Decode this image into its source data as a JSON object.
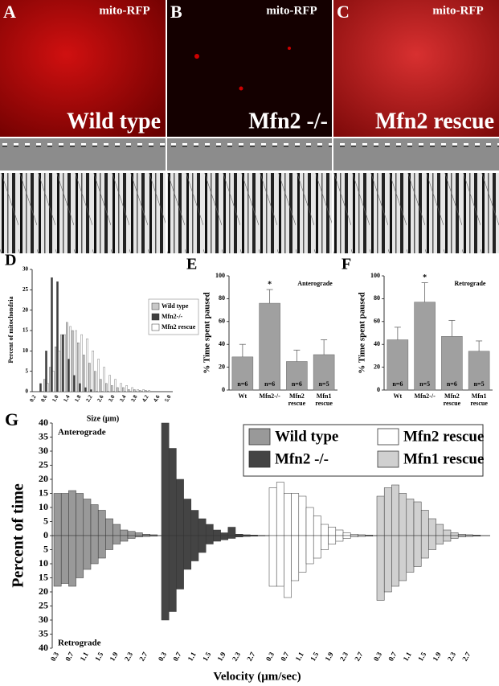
{
  "images": [
    {
      "letter": "A",
      "marker": "mito-RFP",
      "condition": "Wild type"
    },
    {
      "letter": "B",
      "marker": "mito-RFP",
      "condition": "Mfn2 -/-"
    },
    {
      "letter": "C",
      "marker": "mito-RFP",
      "condition": "Mfn2 rescue"
    }
  ],
  "chart_data": [
    {
      "letter": "D",
      "type": "bar",
      "ylabel": "Percent of mitochondria",
      "xlabel": "Size (μm)",
      "categories": [
        "0.2",
        null,
        "0.6",
        null,
        "1.0",
        null,
        "1.4",
        null,
        "1.8",
        null,
        "2.2",
        null,
        "2.6",
        null,
        "3.0",
        null,
        "3.4",
        null,
        "3.8",
        null,
        "4.2",
        null,
        "4.6",
        null,
        "5.0"
      ],
      "series": [
        {
          "name": "Wild type",
          "color": "#c8c8c8",
          "values": [
            0,
            0,
            3,
            6,
            11,
            14,
            17,
            15,
            12,
            9,
            7,
            5,
            3,
            2,
            1.5,
            1,
            1,
            0.5,
            0.5,
            0.3,
            0.3,
            0,
            0,
            0,
            0
          ]
        },
        {
          "name": "Mfn2-/-",
          "color": "#404040",
          "values": [
            0,
            2,
            10,
            28,
            27,
            14,
            8,
            4,
            2,
            1,
            0.5,
            0,
            0,
            0,
            0,
            0,
            0,
            0,
            0,
            0,
            0,
            0,
            0,
            0,
            0
          ]
        },
        {
          "name": "Mfn2 rescue",
          "color": "#ffffff",
          "values": [
            0,
            0,
            2,
            5,
            10,
            14,
            16,
            15,
            14,
            13,
            10,
            8,
            6,
            4,
            3,
            2,
            1.5,
            1,
            0.5,
            0.5,
            0.3,
            0,
            0,
            0,
            0
          ]
        }
      ],
      "ylim": [
        0,
        30
      ],
      "yticks": [
        0,
        5,
        10,
        15,
        20,
        25,
        30
      ]
    },
    {
      "letter": "E",
      "type": "errorbar",
      "title": "Anterograde",
      "ylabel": "% Time spent paused",
      "categories": [
        "Wt",
        "Mfn2-/-",
        "Mfn2 rescue",
        "Mfn1 rescue"
      ],
      "values": [
        29,
        76,
        25,
        31
      ],
      "errors": [
        11,
        12,
        10,
        13
      ],
      "n_labels": [
        "n=6",
        "n=6",
        "n=6",
        "n=5"
      ],
      "annotation": {
        "text": "*",
        "category": "Mfn2-/-"
      },
      "color": "#a0a0a0",
      "ylim": [
        0,
        100
      ],
      "yticks": [
        0,
        20,
        40,
        60,
        80,
        100
      ]
    },
    {
      "letter": "F",
      "type": "errorbar",
      "title": "Retrograde",
      "ylabel": "% Time spent paused",
      "categories": [
        "Wt",
        "Mfn2-/-",
        "Mfn2 rescue",
        "Mfn1 rescue"
      ],
      "values": [
        44,
        77,
        47,
        34
      ],
      "errors": [
        11,
        17,
        14,
        9
      ],
      "n_labels": [
        "n=6",
        "n=5",
        "n=6",
        "n=5"
      ],
      "annotation": {
        "text": "*",
        "category": "Mfn2-/-"
      },
      "color": "#a0a0a0",
      "ylim": [
        0,
        100
      ],
      "yticks": [
        0,
        20,
        40,
        60,
        80,
        100
      ]
    },
    {
      "letter": "G",
      "type": "mirrored",
      "ylabel": "Percent of time",
      "xlabel": "Velocity (μm/sec)",
      "top_label": "Anterograde",
      "bottom_label": "Retrograde",
      "categories": [
        "0.3",
        null,
        "0.7",
        null,
        "1.1",
        null,
        "1.5",
        null,
        "1.9",
        null,
        "2.3",
        null,
        "2.7",
        null
      ],
      "series": [
        {
          "name": "Wild type",
          "color": "#999999",
          "anterograde": [
            15,
            15,
            16,
            15,
            13,
            11,
            9,
            6,
            4,
            2,
            1.5,
            1,
            0.5,
            0.3
          ],
          "retrograde": [
            -18,
            -17,
            -18,
            -15,
            -12,
            -10,
            -8,
            -5,
            -3,
            -2,
            -1,
            -0.5,
            -0.3,
            -0.2
          ]
        },
        {
          "name": "Mfn2 -/-",
          "color": "#444444",
          "anterograde": [
            40,
            31,
            20,
            13,
            9,
            6,
            4,
            2,
            1,
            3,
            0.5,
            0.3,
            0.2,
            0.1
          ],
          "retrograde": [
            -30,
            -27,
            -19,
            -12,
            -9,
            -6,
            -3,
            -2,
            -1.5,
            -1,
            -0.5,
            -0.3,
            -0.2,
            -0.1
          ]
        },
        {
          "name": "Mfn2 rescue",
          "color": "#ffffff",
          "anterograde": [
            17,
            19,
            15,
            15,
            14,
            10,
            7,
            4,
            3,
            2,
            1,
            0.5,
            0.3,
            0.2
          ],
          "retrograde": [
            -18,
            -18,
            -22,
            -16,
            -13,
            -10,
            -8,
            -5,
            -3,
            -2,
            -1,
            -0.5,
            -0.3,
            -0.2
          ]
        },
        {
          "name": "Mfn1 rescue",
          "color": "#d0d0d0",
          "anterograde": [
            14,
            17,
            18,
            15,
            13,
            12,
            9,
            6,
            4,
            2,
            1,
            0.5,
            0.3,
            0.2
          ],
          "retrograde": [
            -23,
            -20,
            -18,
            -16,
            -13,
            -11,
            -8,
            -5,
            -3,
            -2,
            -1,
            -0.5,
            -0.3,
            -0.2
          ]
        }
      ],
      "ylim": [
        -40,
        40
      ],
      "yticks": [
        {
          "value": -40,
          "label": "40"
        },
        {
          "value": -35,
          "label": "35"
        },
        {
          "value": -30,
          "label": "30"
        },
        {
          "value": -25,
          "label": "25"
        },
        {
          "value": -20,
          "label": "20"
        },
        {
          "value": -15,
          "label": "15"
        },
        {
          "value": -10,
          "label": "10"
        },
        {
          "value": -5,
          "label": "5"
        },
        0,
        5,
        10,
        15,
        20,
        25,
        30,
        35,
        40
      ]
    }
  ]
}
